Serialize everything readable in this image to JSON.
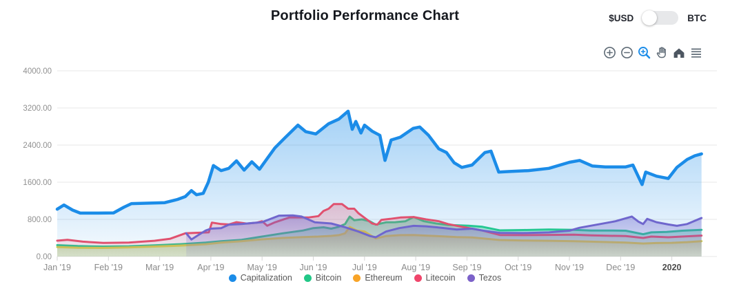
{
  "header": {
    "title": "Portfolio Performance Chart",
    "currency_toggle": {
      "left_label": "$USD",
      "right_label": "BTC",
      "selected": "$USD",
      "track_color": "#e7e8ea",
      "knob_color": "#ffffff"
    }
  },
  "toolbar": {
    "icons": [
      "zoom-in-icon",
      "zoom-out-icon",
      "box-zoom-icon",
      "pan-hand-icon",
      "home-icon",
      "menu-icon"
    ],
    "active_icon": "box-zoom-icon",
    "icon_color": "#5f6b76",
    "active_color": "#1b8ce8",
    "home_color": "#4d5661"
  },
  "chart_data": {
    "type": "area",
    "title": "Portfolio Performance Chart",
    "xlabel": "",
    "ylabel": "",
    "grid": true,
    "legend_position": "bottom-center",
    "y_axis": {
      "max": 4000,
      "min": 0,
      "ticks": [
        {
          "value": 0,
          "label": "0.00"
        },
        {
          "value": 800,
          "label": "800.00"
        },
        {
          "value": 1600,
          "label": "1600.00"
        },
        {
          "value": 2400,
          "label": "2400.00"
        },
        {
          "value": 3200,
          "label": "3200.00"
        },
        {
          "value": 4000,
          "label": "4000.00"
        }
      ]
    },
    "x_axis": {
      "unit": "months_since_jan_2019",
      "max_months": 12.88,
      "ticks": [
        {
          "m": 0,
          "label": "Jan '19"
        },
        {
          "m": 1,
          "label": "Feb '19"
        },
        {
          "m": 2,
          "label": "Mar '19"
        },
        {
          "m": 3,
          "label": "Apr '19"
        },
        {
          "m": 4,
          "label": "May '19"
        },
        {
          "m": 5,
          "label": "Jun '19"
        },
        {
          "m": 6,
          "label": "Jul '19"
        },
        {
          "m": 7,
          "label": "Aug '19"
        },
        {
          "m": 8,
          "label": "Sep '19"
        },
        {
          "m": 9,
          "label": "Oct '19"
        },
        {
          "m": 10,
          "label": "Nov '19"
        },
        {
          "m": 11,
          "label": "Dec '19"
        },
        {
          "m": 12,
          "label": "2020",
          "bold": true
        }
      ]
    },
    "series": [
      {
        "name": "Capitalization",
        "legend_color": "#1b8ce8",
        "line_color": "#1b8ce8",
        "line_width": 4.5,
        "fill_top": "rgba(27,140,232,0.40)",
        "fill_bottom": "rgba(27,140,232,0.04)",
        "points": [
          [
            0,
            1020
          ],
          [
            0.13,
            1110
          ],
          [
            0.3,
            1000
          ],
          [
            0.45,
            935
          ],
          [
            0.8,
            935
          ],
          [
            1.1,
            940
          ],
          [
            1.3,
            1060
          ],
          [
            1.45,
            1140
          ],
          [
            1.8,
            1150
          ],
          [
            2.1,
            1160
          ],
          [
            2.35,
            1230
          ],
          [
            2.5,
            1290
          ],
          [
            2.62,
            1420
          ],
          [
            2.72,
            1330
          ],
          [
            2.85,
            1360
          ],
          [
            2.95,
            1600
          ],
          [
            3.05,
            1960
          ],
          [
            3.2,
            1850
          ],
          [
            3.35,
            1900
          ],
          [
            3.5,
            2060
          ],
          [
            3.65,
            1860
          ],
          [
            3.8,
            2040
          ],
          [
            3.95,
            1880
          ],
          [
            4.1,
            2110
          ],
          [
            4.25,
            2340
          ],
          [
            4.45,
            2560
          ],
          [
            4.7,
            2830
          ],
          [
            4.85,
            2690
          ],
          [
            5.05,
            2640
          ],
          [
            5.3,
            2860
          ],
          [
            5.5,
            2960
          ],
          [
            5.68,
            3130
          ],
          [
            5.76,
            2740
          ],
          [
            5.83,
            2910
          ],
          [
            5.93,
            2660
          ],
          [
            6.0,
            2830
          ],
          [
            6.15,
            2700
          ],
          [
            6.3,
            2610
          ],
          [
            6.4,
            2070
          ],
          [
            6.52,
            2510
          ],
          [
            6.7,
            2570
          ],
          [
            6.95,
            2760
          ],
          [
            7.08,
            2790
          ],
          [
            7.25,
            2610
          ],
          [
            7.45,
            2320
          ],
          [
            7.6,
            2240
          ],
          [
            7.75,
            2020
          ],
          [
            7.9,
            1920
          ],
          [
            8.1,
            1970
          ],
          [
            8.35,
            2240
          ],
          [
            8.47,
            2270
          ],
          [
            8.62,
            1820
          ],
          [
            8.8,
            1830
          ],
          [
            9.2,
            1850
          ],
          [
            9.6,
            1900
          ],
          [
            10.0,
            2030
          ],
          [
            10.2,
            2070
          ],
          [
            10.45,
            1950
          ],
          [
            10.7,
            1930
          ],
          [
            11.1,
            1930
          ],
          [
            11.24,
            1970
          ],
          [
            11.42,
            1550
          ],
          [
            11.49,
            1820
          ],
          [
            11.7,
            1730
          ],
          [
            11.93,
            1680
          ],
          [
            12.1,
            1920
          ],
          [
            12.3,
            2090
          ],
          [
            12.45,
            2170
          ],
          [
            12.58,
            2210
          ]
        ]
      },
      {
        "name": "Bitcoin",
        "legend_color": "#22c787",
        "line_color": "#26c793",
        "line_width": 3,
        "fill_top": "rgba(38,199,147,0.45)",
        "fill_bottom": "rgba(38,199,147,0.15)",
        "points": [
          [
            0,
            245
          ],
          [
            0.4,
            225
          ],
          [
            0.9,
            215
          ],
          [
            1.4,
            220
          ],
          [
            1.9,
            240
          ],
          [
            2.4,
            265
          ],
          [
            2.9,
            300
          ],
          [
            3.2,
            330
          ],
          [
            3.6,
            360
          ],
          [
            4.0,
            430
          ],
          [
            4.4,
            500
          ],
          [
            4.8,
            560
          ],
          [
            5.0,
            612
          ],
          [
            5.2,
            630
          ],
          [
            5.35,
            600
          ],
          [
            5.5,
            640
          ],
          [
            5.62,
            700
          ],
          [
            5.71,
            860
          ],
          [
            5.8,
            780
          ],
          [
            5.95,
            800
          ],
          [
            6.1,
            760
          ],
          [
            6.22,
            686
          ],
          [
            6.42,
            736
          ],
          [
            6.6,
            740
          ],
          [
            6.8,
            760
          ],
          [
            6.96,
            850
          ],
          [
            7.16,
            760
          ],
          [
            7.4,
            711
          ],
          [
            7.63,
            680
          ],
          [
            8.03,
            662
          ],
          [
            8.3,
            640
          ],
          [
            8.64,
            563
          ],
          [
            9.1,
            570
          ],
          [
            9.6,
            580
          ],
          [
            10.09,
            575
          ],
          [
            10.42,
            560
          ],
          [
            10.8,
            560
          ],
          [
            11.1,
            555
          ],
          [
            11.44,
            480
          ],
          [
            11.6,
            520
          ],
          [
            11.9,
            530
          ],
          [
            12.2,
            555
          ],
          [
            12.58,
            575
          ]
        ]
      },
      {
        "name": "Ethereum",
        "legend_color": "#f8a428",
        "line_color": "#c9ce55",
        "line_width": 3,
        "fill_top": "rgba(201,206,85,0.50)",
        "fill_bottom": "rgba(201,206,85,0.18)",
        "points": [
          [
            0,
            205
          ],
          [
            0.4,
            190
          ],
          [
            0.9,
            185
          ],
          [
            1.4,
            195
          ],
          [
            1.9,
            215
          ],
          [
            2.4,
            235
          ],
          [
            2.9,
            265
          ],
          [
            3.2,
            300
          ],
          [
            3.6,
            330
          ],
          [
            4.0,
            370
          ],
          [
            4.4,
            400
          ],
          [
            4.8,
            420
          ],
          [
            5.1,
            430
          ],
          [
            5.35,
            445
          ],
          [
            5.5,
            460
          ],
          [
            5.62,
            500
          ],
          [
            5.71,
            637
          ],
          [
            5.85,
            560
          ],
          [
            6.0,
            540
          ],
          [
            6.22,
            390
          ],
          [
            6.42,
            440
          ],
          [
            6.7,
            460
          ],
          [
            6.96,
            464
          ],
          [
            7.2,
            450
          ],
          [
            7.5,
            435
          ],
          [
            7.8,
            420
          ],
          [
            8.1,
            410
          ],
          [
            8.64,
            355
          ],
          [
            9.1,
            345
          ],
          [
            9.6,
            340
          ],
          [
            10.09,
            330
          ],
          [
            10.42,
            320
          ],
          [
            11.1,
            300
          ],
          [
            11.44,
            280
          ],
          [
            11.7,
            290
          ],
          [
            12.0,
            295
          ],
          [
            12.3,
            310
          ],
          [
            12.58,
            330
          ]
        ]
      },
      {
        "name": "Litecoin",
        "legend_color": "#f0466b",
        "line_color": "#e0516f",
        "line_width": 3,
        "fill_top": "rgba(224,81,111,0.30)",
        "fill_bottom": "rgba(224,81,111,0.08)",
        "points": [
          [
            0,
            341
          ],
          [
            0.2,
            360
          ],
          [
            0.5,
            320
          ],
          [
            0.9,
            292
          ],
          [
            1.4,
            300
          ],
          [
            1.9,
            340
          ],
          [
            2.2,
            380
          ],
          [
            2.5,
            500
          ],
          [
            2.7,
            510
          ],
          [
            2.96,
            520
          ],
          [
            3.02,
            730
          ],
          [
            3.2,
            700
          ],
          [
            3.35,
            690
          ],
          [
            3.5,
            740
          ],
          [
            3.7,
            710
          ],
          [
            3.9,
            730
          ],
          [
            4.0,
            760
          ],
          [
            4.1,
            662
          ],
          [
            4.25,
            736
          ],
          [
            4.53,
            840
          ],
          [
            4.9,
            840
          ],
          [
            5.1,
            870
          ],
          [
            5.2,
            982
          ],
          [
            5.3,
            1030
          ],
          [
            5.4,
            1130
          ],
          [
            5.56,
            1130
          ],
          [
            5.68,
            1030
          ],
          [
            5.8,
            1030
          ],
          [
            5.88,
            933
          ],
          [
            6.0,
            834
          ],
          [
            6.15,
            711
          ],
          [
            6.25,
            686
          ],
          [
            6.33,
            790
          ],
          [
            6.5,
            810
          ],
          [
            6.7,
            840
          ],
          [
            6.96,
            850
          ],
          [
            7.2,
            800
          ],
          [
            7.45,
            760
          ],
          [
            7.63,
            700
          ],
          [
            7.9,
            640
          ],
          [
            8.3,
            560
          ],
          [
            8.64,
            464
          ],
          [
            9.1,
            460
          ],
          [
            9.6,
            465
          ],
          [
            10.09,
            470
          ],
          [
            10.42,
            455
          ],
          [
            11.1,
            440
          ],
          [
            11.44,
            400
          ],
          [
            11.6,
            430
          ],
          [
            11.93,
            415
          ],
          [
            12.2,
            430
          ],
          [
            12.58,
            450
          ]
        ]
      },
      {
        "name": "Tezos",
        "legend_color": "#7c62c9",
        "line_color": "#6f66cd",
        "line_width": 3,
        "fill_top": "rgba(111,102,205,0.42)",
        "fill_bottom": "rgba(111,102,205,0.10)",
        "points": [
          [
            2.52,
            500
          ],
          [
            2.62,
            366
          ],
          [
            2.78,
            480
          ],
          [
            2.9,
            560
          ],
          [
            3.0,
            600
          ],
          [
            3.2,
            610
          ],
          [
            3.35,
            686
          ],
          [
            3.6,
            700
          ],
          [
            3.8,
            720
          ],
          [
            4.0,
            740
          ],
          [
            4.33,
            880
          ],
          [
            4.6,
            885
          ],
          [
            4.77,
            860
          ],
          [
            4.9,
            800
          ],
          [
            5.03,
            736
          ],
          [
            5.35,
            711
          ],
          [
            5.6,
            637
          ],
          [
            5.88,
            538
          ],
          [
            6.11,
            440
          ],
          [
            6.22,
            415
          ],
          [
            6.42,
            538
          ],
          [
            6.68,
            612
          ],
          [
            6.96,
            660
          ],
          [
            7.2,
            650
          ],
          [
            7.5,
            620
          ],
          [
            7.8,
            580
          ],
          [
            8.1,
            600
          ],
          [
            8.3,
            560
          ],
          [
            8.64,
            510
          ],
          [
            9.1,
            505
          ],
          [
            9.6,
            520
          ],
          [
            10.0,
            555
          ],
          [
            10.2,
            620
          ],
          [
            10.6,
            700
          ],
          [
            10.9,
            760
          ],
          [
            11.22,
            860
          ],
          [
            11.35,
            750
          ],
          [
            11.44,
            700
          ],
          [
            11.52,
            810
          ],
          [
            11.7,
            740
          ],
          [
            11.93,
            690
          ],
          [
            12.1,
            660
          ],
          [
            12.3,
            700
          ],
          [
            12.58,
            830
          ]
        ]
      }
    ]
  }
}
